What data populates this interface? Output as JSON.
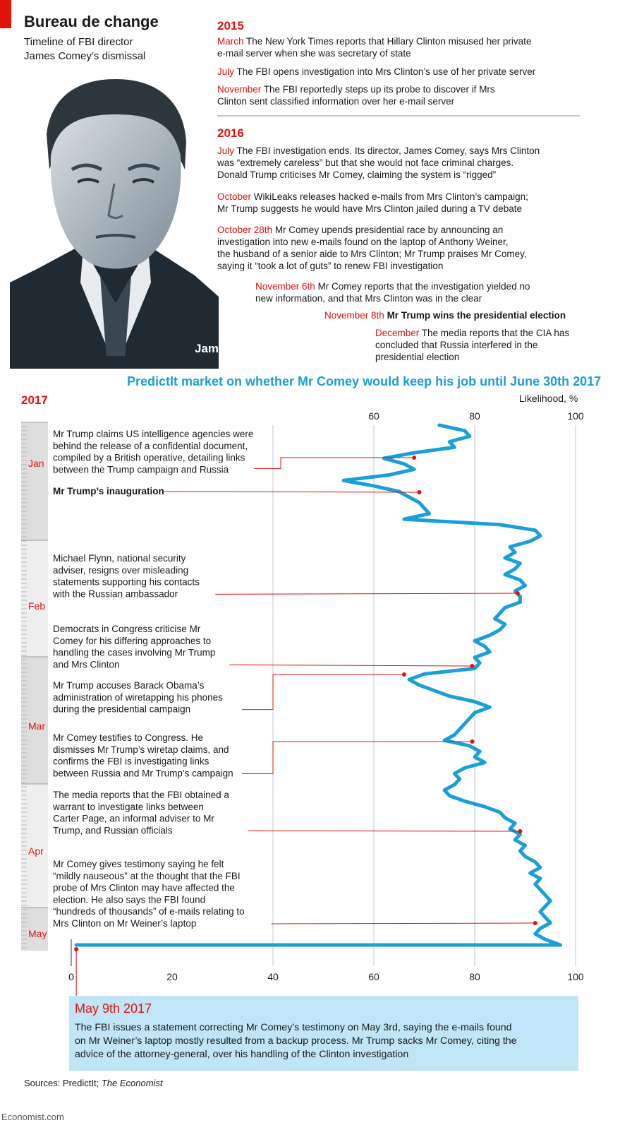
{
  "header": {
    "title": "Bureau de change",
    "subtitle_line1": "Timeline of FBI director",
    "subtitle_line2": "James Comey’s dismissal"
  },
  "portrait": {
    "caption": "James Comey"
  },
  "timeline_2015": {
    "year": "2015",
    "events": [
      {
        "date": "March",
        "lines": [
          "The New York Times reports that Hillary Clinton misused her private",
          "e-mail server when she was secretary of state"
        ]
      },
      {
        "date": "July",
        "lines": [
          "The FBI opens investigation into Mrs Clinton’s use of her private server"
        ]
      },
      {
        "date": "November",
        "lines": [
          "The FBI reportedly steps up its probe to discover if Mrs",
          "Clinton sent classified information over her e-mail server"
        ]
      }
    ]
  },
  "timeline_2016": {
    "year": "2016",
    "events": [
      {
        "date": "July",
        "lines": [
          "The FBI investigation ends. Its director, James Comey, says Mrs Clinton",
          "was “extremely careless” but that she would not face criminal charges.",
          "Donald Trump criticises Mr Comey, claiming the system is “rigged”"
        ]
      },
      {
        "date": "October",
        "lines": [
          "WikiLeaks releases hacked e-mails from Mrs Clinton’s campaign;",
          "Mr Trump suggests he would have Mrs Clinton jailed during a TV debate"
        ]
      },
      {
        "date": "October 28th",
        "lines": [
          "Mr Comey upends presidential race by announcing an",
          "investigation into new e-mails found on the laptop of Anthony Weiner,",
          "the husband of a senior aide to Mrs Clinton; Mr Trump praises Mr Comey,",
          "saying it “took a lot of guts” to renew FBI investigation"
        ]
      },
      {
        "date": "November 6th",
        "lines": [
          "Mr Comey reports that the investigation yielded no",
          "new information, and that Mrs Clinton was in the clear"
        ]
      },
      {
        "date": "November 8th",
        "lines": [
          "Mr Trump wins the presidential election"
        ]
      },
      {
        "date": "December",
        "lines": [
          "The media reports that the CIA has",
          "concluded that Russia interfered in the",
          "presidential election"
        ]
      }
    ]
  },
  "chart_data": {
    "type": "line",
    "title": "PredictIt market on whether Mr Comey would keep his job until June 30th 2017",
    "ylabel": "Likelihood, %",
    "year_label": "2017",
    "value_axis": {
      "min": 0,
      "max": 100,
      "ticks_top": [
        60,
        80,
        100
      ],
      "ticks_bottom": [
        0,
        20,
        40,
        60,
        80,
        100
      ],
      "gridlines": [
        40,
        60,
        80,
        100
      ]
    },
    "months": [
      "Jan",
      "Feb",
      "Mar",
      "Apr",
      "May"
    ],
    "series": [
      {
        "color": "#1b9fd8",
        "values": [
          73,
          78,
          79,
          75,
          76,
          68,
          62,
          66,
          68,
          63,
          54,
          60,
          65,
          67,
          69,
          70,
          71,
          66,
          85,
          92,
          93,
          91,
          87,
          88,
          86,
          89,
          88,
          86,
          89,
          90,
          88,
          89,
          89,
          86,
          85,
          84,
          86,
          85,
          83,
          80,
          82,
          83,
          80,
          81,
          80,
          70,
          67,
          69,
          72,
          75,
          80,
          83,
          80,
          79,
          78,
          77,
          76,
          74,
          79,
          81,
          80,
          82,
          78,
          76,
          77,
          76,
          74,
          75,
          78,
          82,
          85,
          86,
          88,
          87,
          89,
          88,
          90,
          89,
          90,
          92,
          93,
          91,
          93,
          92,
          93,
          94,
          95,
          94,
          93,
          94,
          95,
          93,
          92,
          94,
          97,
          1
        ]
      }
    ],
    "annotations": [
      {
        "lines": [
          "Mr Trump claims US intelligence agencies were",
          "behind the release of a confidential document,",
          "compiled by a British operative, detailing links",
          "between the Trump campaign and Russia"
        ],
        "value": 68
      },
      {
        "lines": [
          "Mr Trump’s inauguration"
        ],
        "value": 69,
        "bold": true
      },
      {
        "lines": [
          "Michael Flynn, national security",
          "adviser, resigns over misleading",
          "statements supporting his contacts",
          "with the Russian ambassador"
        ],
        "value": 88.5
      },
      {
        "lines": [
          "Democrats in Congress criticise Mr",
          "Comey for his differing approaches to",
          "handling the cases involving Mr Trump",
          "and Mrs Clinton"
        ],
        "value": 79.5
      },
      {
        "lines": [
          "Mr Trump accuses Barack Obama’s",
          "administration of wiretapping his phones",
          "during the presidential campaign"
        ],
        "value": 66
      },
      {
        "lines": [
          "Mr Comey testifies to Congress. He",
          "dismisses Mr Trump’s wiretap claims, and",
          "confirms the FBI is investigating links",
          "between Russia and Mr Trump’s campaign"
        ],
        "value": 79.5
      },
      {
        "lines": [
          "The media reports that the FBI obtained a",
          "warrant to investigate links between",
          "Carter Page, an informal adviser to Mr",
          "Trump, and Russian officials"
        ],
        "value": 89
      },
      {
        "lines": [
          "Mr Comey gives testimony saying he felt",
          "“mildly nauseous” at the thought that the FBI",
          "probe of Mrs Clinton may have affected the",
          "election. He also says the FBI found",
          "“hundreds of thousands” of e-mails relating to",
          "Mrs Clinton on Mr Weiner’s laptop"
        ],
        "value": 92
      }
    ],
    "final_event": {
      "title": "May 9th 2017",
      "lines": [
        "The FBI issues a statement correcting Mr Comey’s testimony on May 3rd, saying the e-mails found",
        "on Mr Weiner’s laptop mostly resulted from a backup process. Mr Trump sacks Mr Comey, citing the",
        "advice of the attorney-general, over his handling of the Clinton investigation"
      ],
      "value": 1
    }
  },
  "footer": {
    "sources_prefix": "Sources: PredictIt; ",
    "sources_italic": "The Economist",
    "credit": "Economist.com"
  },
  "colors": {
    "accent_red": "#e3120b",
    "chart_blue": "#1b9fd8",
    "callout_bg": "#bfe5f6"
  }
}
